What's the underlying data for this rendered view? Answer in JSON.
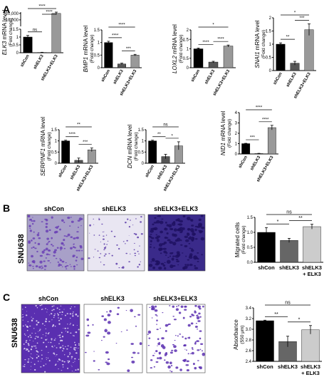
{
  "panels": {
    "A": "A",
    "B": "B",
    "C": "C"
  },
  "chart_data": [
    {
      "id": "ELK3",
      "type": "bar",
      "gene": "ELK3",
      "ylabel_suffix": " mRNA level",
      "ylabel2": "(Fold change)",
      "categories": [
        "shCon",
        "shELK3",
        "shELK3+ELK3"
      ],
      "values": [
        1.0,
        0.02,
        20000
      ],
      "errors": [
        0.1,
        0.01,
        2000
      ],
      "colors": [
        "#000000",
        "#555555",
        "#999999"
      ],
      "broken_axis": true,
      "yticks_top": [
        "20,000",
        "10,000"
      ],
      "yticks_bottom": [
        "1.5",
        "1",
        "0.5",
        "0"
      ],
      "sig": [
        {
          "a": 0,
          "b": 1,
          "text": "ns"
        },
        {
          "a": 0,
          "b": 2,
          "text": "****"
        },
        {
          "a": 1,
          "b": 2,
          "text": "****"
        }
      ]
    },
    {
      "id": "BMP1",
      "type": "bar",
      "gene": "BMP1",
      "ylabel_suffix": " mRNA level",
      "ylabel2": "(Fold change)",
      "categories": [
        "shCon",
        "shELK3",
        "shELK3+ELK3"
      ],
      "values": [
        1.0,
        0.15,
        0.5
      ],
      "errors": [
        0.05,
        0.03,
        0.03
      ],
      "colors": [
        "#000000",
        "#555555",
        "#999999"
      ],
      "ylim": [
        0,
        1.5
      ],
      "yticks": [
        "0",
        "0.5",
        "1",
        "1.5"
      ],
      "ytickvals": [
        0,
        0.5,
        1,
        1.5
      ],
      "sig": [
        {
          "a": 0,
          "b": 1,
          "text": "****"
        },
        {
          "a": 0,
          "b": 2,
          "text": "****"
        },
        {
          "a": 1,
          "b": 2,
          "text": "***"
        }
      ]
    },
    {
      "id": "LOXL2",
      "type": "bar",
      "gene": "LOXL2",
      "ylabel_suffix": " mRNA level",
      "ylabel2": "(Fold change)",
      "categories": [
        "shCon",
        "shELK3",
        "shELK3+ELK3"
      ],
      "values": [
        1.0,
        0.3,
        1.15
      ],
      "errors": [
        0.04,
        0.04,
        0.05
      ],
      "colors": [
        "#000000",
        "#555555",
        "#999999"
      ],
      "ylim": [
        0,
        2.0
      ],
      "yticks": [
        "0",
        "0.5",
        "1",
        "1.5",
        "2"
      ],
      "ytickvals": [
        0,
        0.5,
        1,
        1.5,
        2
      ],
      "sig": [
        {
          "a": 0,
          "b": 1,
          "text": "****"
        },
        {
          "a": 0,
          "b": 2,
          "text": "*"
        },
        {
          "a": 1,
          "b": 2,
          "text": "****"
        }
      ]
    },
    {
      "id": "SNAI1",
      "type": "bar",
      "gene": "SNAI1",
      "ylabel_suffix": " mRNA level",
      "ylabel2": "(Fold change)",
      "categories": [
        "shCon",
        "shELK3",
        "shELK3+ELK3"
      ],
      "values": [
        1.0,
        0.28,
        1.55
      ],
      "errors": [
        0.05,
        0.07,
        0.22
      ],
      "colors": [
        "#000000",
        "#555555",
        "#999999"
      ],
      "ylim": [
        0,
        2.0
      ],
      "yticks": [
        "0",
        "0.5",
        "1",
        "1.5",
        "2"
      ],
      "ytickvals": [
        0,
        0.5,
        1,
        1.5,
        2
      ],
      "sig": [
        {
          "a": 0,
          "b": 1,
          "text": "**"
        },
        {
          "a": 0,
          "b": 2,
          "text": "*"
        },
        {
          "a": 1,
          "b": 2,
          "text": "***"
        }
      ]
    },
    {
      "id": "SERPINF1",
      "type": "bar",
      "gene": "SERPINF1",
      "ylabel_suffix": " mRNA level",
      "ylabel2": "(Fold change)",
      "categories": [
        "shCon",
        "shELK3",
        "shELK3+ELK3"
      ],
      "values": [
        1.0,
        0.13,
        0.6
      ],
      "errors": [
        0.03,
        0.1,
        0.08
      ],
      "colors": [
        "#000000",
        "#555555",
        "#999999"
      ],
      "ylim": [
        0,
        1.5
      ],
      "yticks": [
        "0",
        "0.5",
        "1",
        "1.5"
      ],
      "ytickvals": [
        0,
        0.5,
        1,
        1.5
      ],
      "sig": [
        {
          "a": 0,
          "b": 1,
          "text": "****"
        },
        {
          "a": 0,
          "b": 2,
          "text": "**"
        },
        {
          "a": 1,
          "b": 2,
          "text": "***"
        }
      ]
    },
    {
      "id": "DCN",
      "type": "bar",
      "gene": "DCN",
      "ylabel_suffix": " mRNA level",
      "ylabel2": "(Fold change)",
      "categories": [
        "shCon",
        "shELK3",
        "shELK3+ELK3"
      ],
      "values": [
        1.0,
        0.3,
        0.78
      ],
      "errors": [
        0.03,
        0.1,
        0.18
      ],
      "colors": [
        "#000000",
        "#555555",
        "#999999"
      ],
      "ylim": [
        0,
        1.5
      ],
      "yticks": [
        "0",
        "0.5",
        "1",
        "1.5"
      ],
      "ytickvals": [
        0,
        0.5,
        1,
        1.5
      ],
      "sig": [
        {
          "a": 0,
          "b": 1,
          "text": "**"
        },
        {
          "a": 0,
          "b": 2,
          "text": "ns"
        },
        {
          "a": 1,
          "b": 2,
          "text": "*"
        }
      ]
    },
    {
      "id": "NID1",
      "type": "bar",
      "gene": "NID1",
      "ylabel_suffix": " mRNA level",
      "ylabel2": "(Fold change)",
      "categories": [
        "shCon",
        "shELK3",
        "shELK3+ELK3"
      ],
      "values": [
        1.0,
        0.04,
        2.55
      ],
      "errors": [
        0.03,
        0.02,
        0.22
      ],
      "colors": [
        "#000000",
        "#555555",
        "#999999"
      ],
      "ylim": [
        0,
        4
      ],
      "yticks": [
        "0",
        "1",
        "2",
        "3",
        "4"
      ],
      "ytickvals": [
        0,
        1,
        2,
        3,
        4
      ],
      "sig": [
        {
          "a": 0,
          "b": 1,
          "text": "***"
        },
        {
          "a": 0,
          "b": 2,
          "text": "****"
        },
        {
          "a": 1,
          "b": 2,
          "text": "****"
        }
      ]
    },
    {
      "id": "B",
      "type": "bar",
      "ylabel": "Migrated cells",
      "ylabel2": "(Fold change)",
      "categories": [
        "shCon",
        "shELK3",
        "shELK3 + ELK3"
      ],
      "values": [
        1.0,
        0.73,
        1.19
      ],
      "errors": [
        0.16,
        0.07,
        0.08
      ],
      "colors": [
        "#000000",
        "#666666",
        "#cccccc"
      ],
      "ylim": [
        0,
        1.5
      ],
      "yticks": [
        "0.0",
        "0.5",
        "1.0",
        "1.5"
      ],
      "ytickvals": [
        0,
        0.5,
        1.0,
        1.5
      ],
      "sig": [
        {
          "a": 0,
          "b": 1,
          "text": "*"
        },
        {
          "a": 0,
          "b": 2,
          "text": "ns"
        },
        {
          "a": 1,
          "b": 2,
          "text": "**"
        }
      ]
    },
    {
      "id": "C",
      "type": "bar",
      "ylabel": "Absorbance",
      "ylabel2": "(550 μm)",
      "categories": [
        "shCon",
        "shELK3",
        "shELK3 + ELK3"
      ],
      "values": [
        3.16,
        2.77,
        2.99
      ],
      "errors": [
        0.01,
        0.1,
        0.08
      ],
      "colors": [
        "#000000",
        "#666666",
        "#cccccc"
      ],
      "ylim": [
        2.4,
        3.4
      ],
      "yticks": [
        "2.4",
        "2.6",
        "2.8",
        "3.0",
        "3.2",
        "3.4"
      ],
      "ytickvals": [
        2.4,
        2.6,
        2.8,
        3.0,
        3.2,
        3.4
      ],
      "sig": [
        {
          "a": 0,
          "b": 1,
          "text": "**"
        },
        {
          "a": 0,
          "b": 2,
          "text": "ns"
        },
        {
          "a": 1,
          "b": 2,
          "text": "*"
        }
      ]
    }
  ],
  "images": {
    "cell_line": "SNU638",
    "titles": [
      "shCon",
      "shELK3",
      "shELK3+ELK3"
    ]
  }
}
